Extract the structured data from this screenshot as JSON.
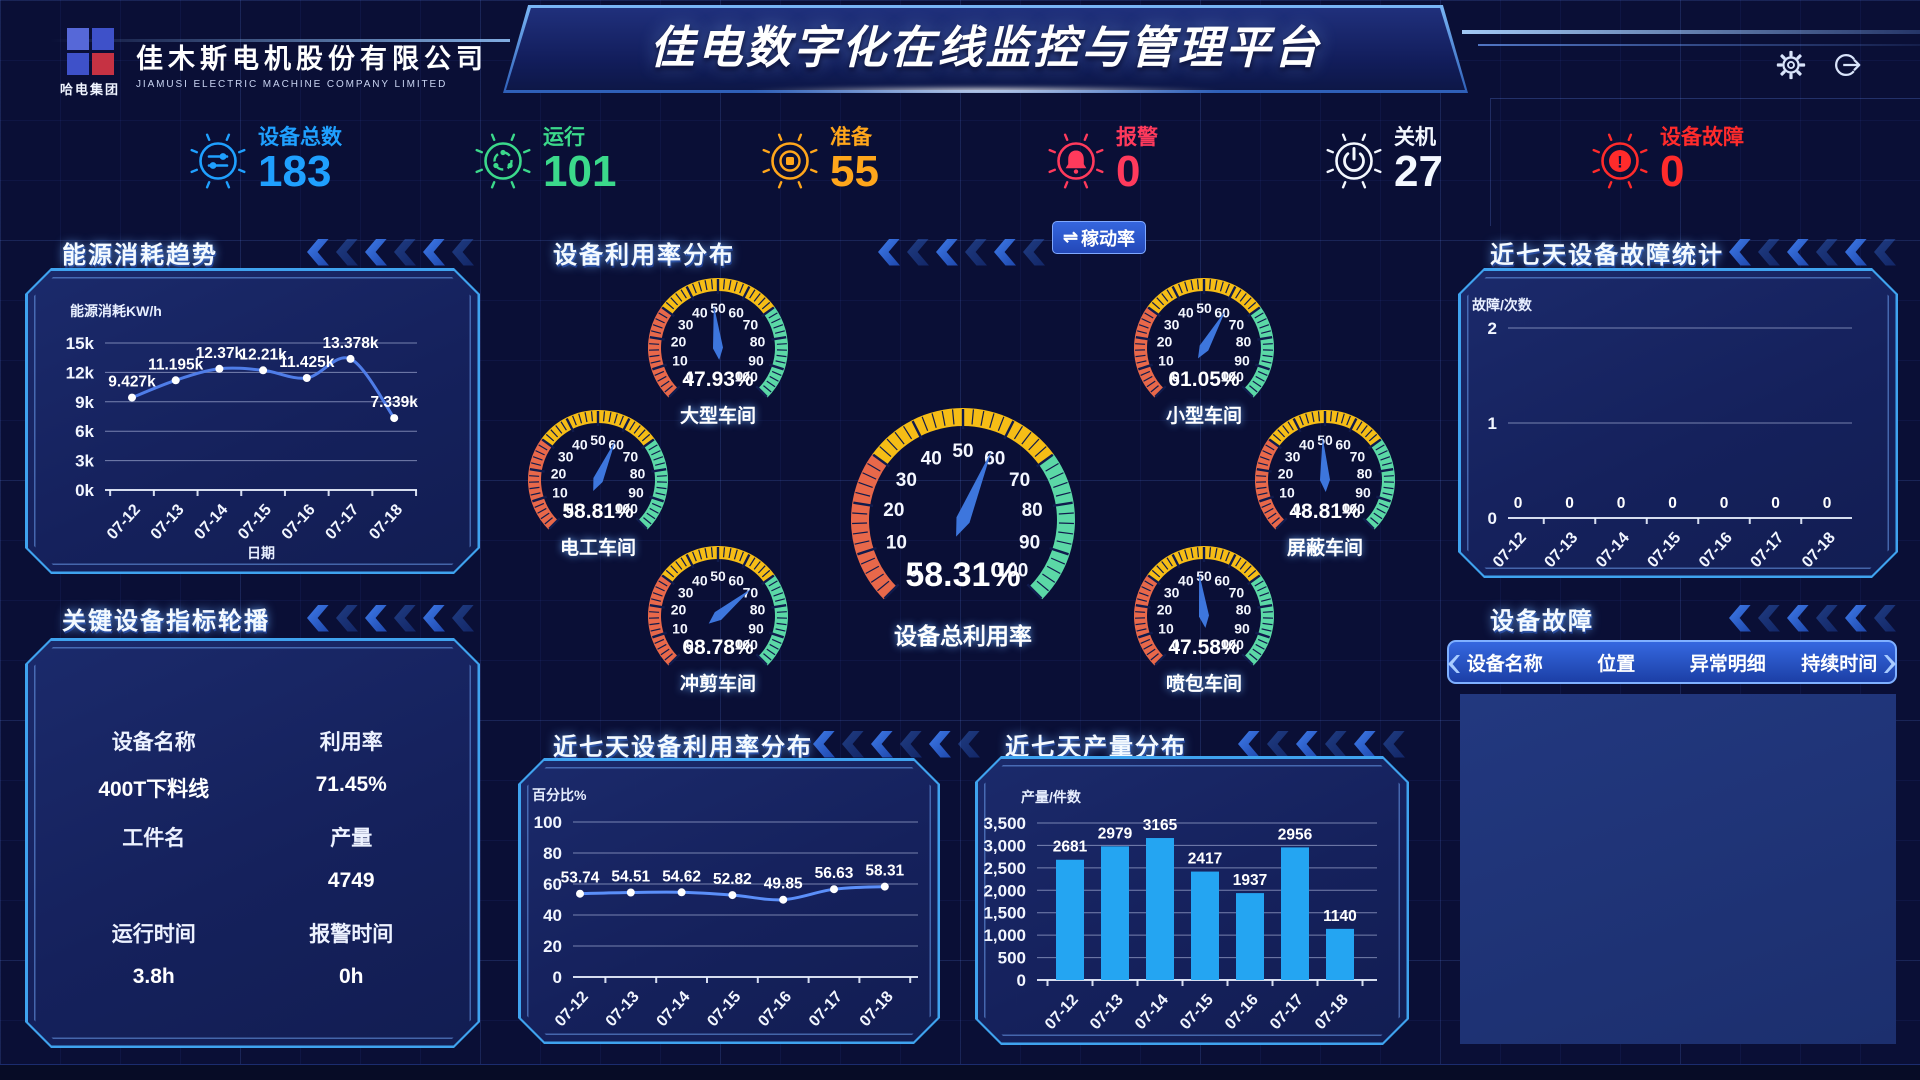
{
  "header": {
    "logo_group": "哈电集团",
    "company_cn": "佳木斯电机股份有限公司",
    "company_en": "JIAMUSI ELECTRIC MACHINE COMPANY LIMITED",
    "title": "佳电数字化在线监控与管理平台",
    "icons": {
      "settings": "gear",
      "logout": "logout-arrow"
    }
  },
  "stats": [
    {
      "key": "total-devices",
      "label": "设备总数",
      "value": "183",
      "color": "#1FA0FF",
      "icon": "tune"
    },
    {
      "key": "running",
      "label": "运行",
      "value": "101",
      "color": "#3BD98B",
      "icon": "run"
    },
    {
      "key": "ready",
      "label": "准备",
      "value": "55",
      "color": "#FFA61B",
      "icon": "ready"
    },
    {
      "key": "alarm",
      "label": "报警",
      "value": "0",
      "color": "#FF3A5C",
      "icon": "bell"
    },
    {
      "key": "shutdown",
      "label": "关机",
      "value": "27",
      "color": "#F4F8FF",
      "icon": "power"
    },
    {
      "key": "fault",
      "label": "设备故障",
      "value": "0",
      "color": "#FF2B2B",
      "icon": "fault"
    }
  ],
  "sections": {
    "energy": {
      "title": "能源消耗趋势"
    },
    "gauges": {
      "title": "设备利用率分布",
      "button_icon": "⇌",
      "button_label": "稼动率"
    },
    "fault_stats": {
      "title": "近七天设备故障统计"
    },
    "key_equip": {
      "title": "关键设备指标轮播"
    },
    "util7": {
      "title": "近七天设备利用率分布"
    },
    "production": {
      "title": "近七天产量分布"
    },
    "fault_table": {
      "title": "设备故障"
    }
  },
  "key_equipment": {
    "fields": [
      {
        "label": "设备名称",
        "value": "400T下料线"
      },
      {
        "label": "利用率",
        "value": "71.45%"
      },
      {
        "label": "工件名",
        "value": ""
      },
      {
        "label": "产量",
        "value": "4749"
      },
      {
        "label": "运行时间",
        "value": "3.8h"
      },
      {
        "label": "报警时间",
        "value": "0h"
      }
    ]
  },
  "fault_table": {
    "columns": [
      "设备名称",
      "位置",
      "异常明细",
      "持续时间"
    ],
    "rows": []
  },
  "chart_data": [
    {
      "id": "energy",
      "type": "line",
      "title": "能源消耗趋势",
      "ylabel": "能源消耗KW/h",
      "xlabel": "日期",
      "categories": [
        "07-12",
        "07-13",
        "07-14",
        "07-15",
        "07-16",
        "07-17",
        "07-18"
      ],
      "values": [
        9427,
        11195,
        12370,
        12210,
        11425,
        13378,
        7339
      ],
      "value_labels": [
        "9.427k",
        "11.195k",
        "12.37k",
        "12.21k",
        "11.425k",
        "13.378k",
        "7.339k"
      ],
      "ylim": [
        0,
        15000
      ],
      "yticks": [
        [
          0,
          "0k"
        ],
        [
          3000,
          "3k"
        ],
        [
          6000,
          "6k"
        ],
        [
          9000,
          "9k"
        ],
        [
          12000,
          "12k"
        ],
        [
          15000,
          "15k"
        ]
      ],
      "line_color": "#4F7DE8",
      "dot_color": "#FFFFFF",
      "grid": true,
      "legend": "none"
    },
    {
      "id": "fault7",
      "type": "bar",
      "title": "近七天设备故障统计",
      "ylabel": "故障/次数",
      "xlabel": "",
      "categories": [
        "07-12",
        "07-13",
        "07-14",
        "07-15",
        "07-16",
        "07-17",
        "07-18"
      ],
      "values": [
        0,
        0,
        0,
        0,
        0,
        0,
        0
      ],
      "value_labels": [
        "0",
        "0",
        "0",
        "0",
        "0",
        "0",
        "0"
      ],
      "ylim": [
        0,
        2
      ],
      "yticks": [
        [
          0,
          "0"
        ],
        [
          1,
          "1"
        ],
        [
          2,
          "2"
        ]
      ],
      "bar_color": "#24A5F2",
      "grid": true,
      "legend": "none"
    },
    {
      "id": "util7",
      "type": "line",
      "title": "近七天设备利用率分布",
      "ylabel": "百分比%",
      "xlabel": "",
      "categories": [
        "07-12",
        "07-13",
        "07-14",
        "07-15",
        "07-16",
        "07-17",
        "07-18"
      ],
      "values": [
        53.74,
        54.51,
        54.62,
        52.82,
        49.85,
        56.63,
        58.31
      ],
      "value_labels": [
        "53.74",
        "54.51",
        "54.62",
        "52.82",
        "49.85",
        "56.63",
        "58.31"
      ],
      "ylim": [
        0,
        100
      ],
      "yticks": [
        [
          0,
          "0"
        ],
        [
          20,
          "20"
        ],
        [
          40,
          "40"
        ],
        [
          60,
          "60"
        ],
        [
          80,
          "80"
        ],
        [
          100,
          "100"
        ]
      ],
      "line_color": "#5B8FF9",
      "dot_color": "#FFFFFF",
      "grid": true,
      "legend": "none"
    },
    {
      "id": "production",
      "type": "bar",
      "title": "近七天产量分布",
      "ylabel": "产量/件数",
      "xlabel": "",
      "categories": [
        "07-12",
        "07-13",
        "07-14",
        "07-15",
        "07-16",
        "07-17",
        "07-18"
      ],
      "values": [
        2681,
        2979,
        3165,
        2417,
        1937,
        2956,
        1140
      ],
      "value_labels": [
        "2681",
        "2979",
        "3165",
        "2417",
        "1937",
        "2956",
        "1140"
      ],
      "ylim": [
        0,
        3500
      ],
      "yticks": [
        [
          0,
          "0"
        ],
        [
          500,
          "500"
        ],
        [
          1000,
          "1,000"
        ],
        [
          1500,
          "1,500"
        ],
        [
          2000,
          "2,000"
        ],
        [
          2500,
          "2,500"
        ],
        [
          3000,
          "3,000"
        ],
        [
          3500,
          "3,500"
        ]
      ],
      "bar_color": "#24A5F2",
      "grid": true,
      "legend": "none"
    },
    {
      "id": "gauges",
      "type": "gauge",
      "title": "设备利用率分布",
      "scale": [
        0,
        100
      ],
      "tick_step": 10,
      "bands": [
        {
          "to": 30,
          "color": "#E8684A"
        },
        {
          "to": 70,
          "color": "#F6BD16"
        },
        {
          "to": 100,
          "color": "#5BD8A6"
        }
      ],
      "needle_color": "#3D76DD",
      "items": [
        {
          "name": "大型车间",
          "value": 47.93,
          "value_label": "47.93%"
        },
        {
          "name": "小型车间",
          "value": 61.05,
          "value_label": "61.05%"
        },
        {
          "name": "电工车间",
          "value": 58.81,
          "value_label": "58.81%"
        },
        {
          "name": "屏蔽车间",
          "value": 48.81,
          "value_label": "48.81%"
        },
        {
          "name": "冲剪车间",
          "value": 68.78,
          "value_label": "68.78%"
        },
        {
          "name": "喷包车间",
          "value": 47.58,
          "value_label": "47.58%"
        },
        {
          "name": "设备总利用率",
          "value": 58.31,
          "value_label": "58.31%",
          "big": true
        }
      ]
    }
  ]
}
